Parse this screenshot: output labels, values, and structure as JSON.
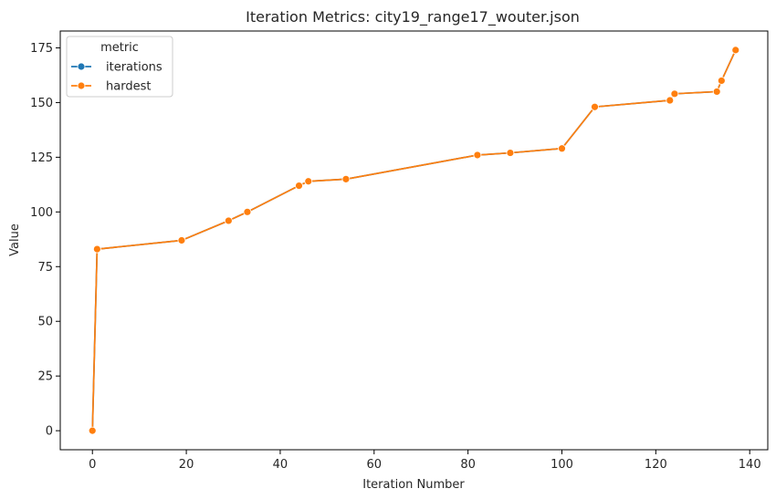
{
  "chart_data": {
    "type": "line",
    "title": "Iteration Metrics: city19_range17_wouter.json",
    "xlabel": "Iteration Number",
    "ylabel": "Value",
    "xlim": [
      -6.85,
      143.85
    ],
    "ylim": [
      -8.7,
      182.7
    ],
    "xticks": [
      0,
      20,
      40,
      60,
      80,
      100,
      120,
      140
    ],
    "yticks": [
      0,
      25,
      50,
      75,
      100,
      125,
      150,
      175
    ],
    "grid": false,
    "legend": {
      "title": "metric",
      "placement": "top-left"
    },
    "series": [
      {
        "name": "iterations",
        "color": "#1f77b4",
        "x": [
          0,
          1,
          19,
          29,
          33,
          44,
          46,
          54,
          82,
          89,
          100,
          107,
          123,
          124,
          133,
          134,
          137
        ],
        "y": [
          0,
          83,
          87,
          96,
          100,
          112,
          114,
          115,
          126,
          127,
          129,
          148,
          151,
          154,
          155,
          160,
          174
        ]
      },
      {
        "name": "hardest",
        "color": "#ff7f0e",
        "x": [
          0,
          1,
          19,
          29,
          33,
          44,
          46,
          54,
          82,
          89,
          100,
          107,
          123,
          124,
          133,
          134,
          137
        ],
        "y": [
          0,
          83,
          87,
          96,
          100,
          112,
          114,
          115,
          126,
          127,
          129,
          148,
          151,
          154,
          155,
          160,
          174
        ]
      }
    ]
  }
}
